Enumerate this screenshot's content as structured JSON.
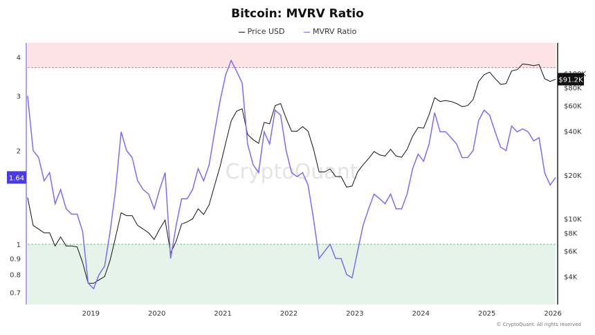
{
  "chart_data": {
    "type": "line",
    "title": "Bitcoin: MVRV Ratio",
    "legend_placement": "top-center",
    "watermark": "CryptoQuant",
    "footer": "© CryptoQuant. All rights reserved",
    "x_ticks": [
      "2019",
      "2020",
      "2021",
      "2022",
      "2023",
      "2024",
      "2025",
      "2026"
    ],
    "left_axis": {
      "scale": "log",
      "range": [
        0.64,
        4.44
      ],
      "ticks": [
        4,
        3,
        2,
        1,
        0.9,
        0.8,
        0.7
      ],
      "tick_labels": [
        "4",
        "3",
        "2",
        "1",
        "0.9",
        "0.8",
        "0.7"
      ],
      "current_label": "1.64",
      "current_value": 1.64
    },
    "right_axis": {
      "scale": "log",
      "range": [
        2570,
        162000
      ],
      "ticks": [
        100000,
        80000,
        60000,
        40000,
        20000,
        10000,
        8000,
        6000,
        4000
      ],
      "tick_labels": [
        "$100K",
        "$80K",
        "$60K",
        "$40K",
        "$20K",
        "$10K",
        "$8K",
        "$6K",
        "$4K"
      ],
      "current_label": "$91.2K",
      "current_value": 91200
    },
    "bands": [
      {
        "from": 3.7,
        "to": 4.44,
        "color": "#fde3e3",
        "line": "#e07a7a"
      },
      {
        "from": 0.64,
        "to": 1.0,
        "color": "#e6f3ea",
        "line": "#7ac08a"
      }
    ],
    "series": [
      {
        "name": "Price USD",
        "color": "#111111",
        "axis": "right"
      },
      {
        "name": "MVRV Ratio",
        "color": "#7b6cf0",
        "axis": "left"
      }
    ],
    "dates": [
      "2018-01",
      "2018-02",
      "2018-03",
      "2018-04",
      "2018-05",
      "2018-06",
      "2018-07",
      "2018-08",
      "2018-09",
      "2018-10",
      "2018-11",
      "2018-12",
      "2019-01",
      "2019-02",
      "2019-03",
      "2019-04",
      "2019-05",
      "2019-06",
      "2019-07",
      "2019-08",
      "2019-09",
      "2019-10",
      "2019-11",
      "2019-12",
      "2020-01",
      "2020-02",
      "2020-03",
      "2020-04",
      "2020-05",
      "2020-06",
      "2020-07",
      "2020-08",
      "2020-09",
      "2020-10",
      "2020-11",
      "2020-12",
      "2021-01",
      "2021-02",
      "2021-03",
      "2021-04",
      "2021-05",
      "2021-06",
      "2021-07",
      "2021-08",
      "2021-09",
      "2021-10",
      "2021-11",
      "2021-12",
      "2022-01",
      "2022-02",
      "2022-03",
      "2022-04",
      "2022-05",
      "2022-06",
      "2022-07",
      "2022-08",
      "2022-09",
      "2022-10",
      "2022-11",
      "2022-12",
      "2023-01",
      "2023-02",
      "2023-03",
      "2023-04",
      "2023-05",
      "2023-06",
      "2023-07",
      "2023-08",
      "2023-09",
      "2023-10",
      "2023-11",
      "2023-12",
      "2024-01",
      "2024-02",
      "2024-03",
      "2024-04",
      "2024-05",
      "2024-06",
      "2024-07",
      "2024-08",
      "2024-09",
      "2024-10",
      "2024-11",
      "2024-12",
      "2025-01",
      "2025-02",
      "2025-03",
      "2025-04",
      "2025-05",
      "2025-06",
      "2025-07",
      "2025-08",
      "2025-09",
      "2025-10",
      "2025-11",
      "2025-12",
      "2026-01"
    ],
    "price": [
      14000,
      9000,
      8500,
      8000,
      8000,
      6500,
      7500,
      6500,
      6500,
      6400,
      5000,
      3600,
      3600,
      3800,
      4000,
      5200,
      7500,
      11000,
      10500,
      10500,
      9000,
      8500,
      8000,
      7200,
      8500,
      9800,
      5800,
      7000,
      9200,
      9500,
      10000,
      11700,
      10700,
      12500,
      17000,
      23000,
      33000,
      47000,
      55000,
      57000,
      38000,
      35000,
      33000,
      46000,
      45000,
      60000,
      62000,
      49000,
      40000,
      40000,
      43000,
      40000,
      30000,
      21000,
      21000,
      22000,
      19500,
      19500,
      16500,
      16800,
      21000,
      23500,
      26000,
      29000,
      27500,
      27000,
      30000,
      27000,
      26500,
      30000,
      37000,
      42500,
      42000,
      52000,
      68000,
      64000,
      65000,
      64000,
      62000,
      59000,
      60000,
      66000,
      88000,
      98000,
      102000,
      92000,
      84000,
      85000,
      104000,
      106000,
      116000,
      115000,
      113000,
      115000,
      92000,
      88000,
      91200
    ],
    "mvrv": [
      3.0,
      2.0,
      1.9,
      1.6,
      1.7,
      1.35,
      1.5,
      1.3,
      1.25,
      1.25,
      1.1,
      0.75,
      0.72,
      0.8,
      0.85,
      1.1,
      1.5,
      2.3,
      2.0,
      1.9,
      1.6,
      1.5,
      1.45,
      1.3,
      1.5,
      1.7,
      0.9,
      1.15,
      1.4,
      1.4,
      1.5,
      1.75,
      1.6,
      1.8,
      2.3,
      2.9,
      3.5,
      3.9,
      3.6,
      3.3,
      2.1,
      1.8,
      1.7,
      2.3,
      2.1,
      2.7,
      2.6,
      2.0,
      1.7,
      1.65,
      1.7,
      1.55,
      1.2,
      0.9,
      0.95,
      1.0,
      0.9,
      0.9,
      0.8,
      0.78,
      0.95,
      1.15,
      1.3,
      1.45,
      1.4,
      1.35,
      1.45,
      1.3,
      1.3,
      1.45,
      1.75,
      1.95,
      1.85,
      2.1,
      2.65,
      2.3,
      2.3,
      2.2,
      2.1,
      1.9,
      1.9,
      2.0,
      2.5,
      2.7,
      2.6,
      2.3,
      2.05,
      2.0,
      2.4,
      2.3,
      2.35,
      2.3,
      2.15,
      2.2,
      1.7,
      1.55,
      1.64
    ]
  }
}
